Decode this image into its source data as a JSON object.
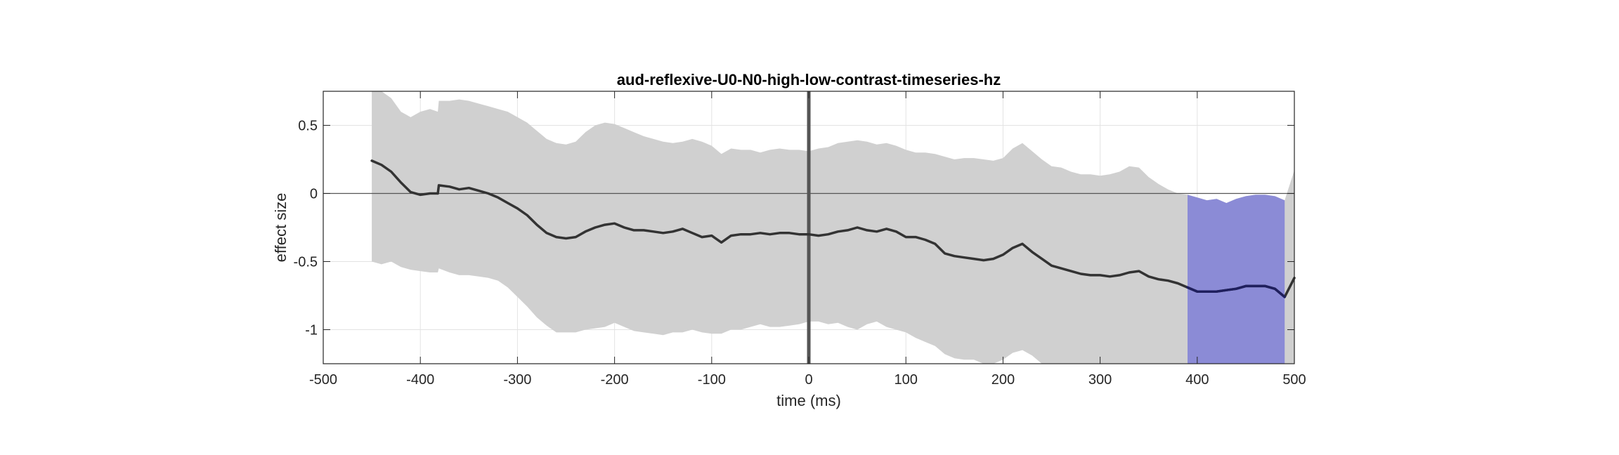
{
  "chart_data": {
    "type": "line",
    "title": "aud-reflexive-U0-N0-high-low-contrast-timeseries-hz",
    "xlabel": "time (ms)",
    "ylabel": "effect size",
    "xlim": [
      -500,
      500
    ],
    "ylim": [
      -1.25,
      0.75
    ],
    "xticks": [
      -500,
      -400,
      -300,
      -200,
      -100,
      0,
      100,
      200,
      300,
      400,
      500
    ],
    "xtick_labels": [
      "-500",
      "-400",
      "-300",
      "-200",
      "-100",
      "0",
      "100",
      "200",
      "300",
      "400",
      "500"
    ],
    "yticks": [
      -1,
      -0.5,
      0,
      0.5
    ],
    "ytick_labels": [
      "-1",
      "-0.5",
      "0",
      "0.5"
    ],
    "grid": true,
    "zero_line": 0,
    "event_line_x": 0,
    "significant_window": [
      390,
      490
    ],
    "colors": {
      "line": "#333333",
      "line_significant": "#1f1f5e",
      "band": "#d0d0d0",
      "band_significant": "#8b8bd6",
      "event_line": "#555555",
      "grid": "#e3e3e3"
    },
    "series": [
      {
        "x": [
          -450,
          -440,
          -430,
          -420,
          -410,
          -400,
          -390,
          -382,
          -381,
          -370,
          -360,
          -350,
          -340,
          -330,
          -320,
          -310,
          -300,
          -290,
          -280,
          -270,
          -260,
          -250,
          -240,
          -230,
          -220,
          -210,
          -200,
          -190,
          -180,
          -170,
          -160,
          -150,
          -140,
          -130,
          -120,
          -110,
          -100,
          -90,
          -80,
          -70,
          -60,
          -50,
          -40,
          -30,
          -20,
          -10,
          0,
          10,
          20,
          30,
          40,
          50,
          60,
          70,
          80,
          90,
          100,
          110,
          120,
          130,
          140,
          150,
          160,
          170,
          180,
          190,
          200,
          210,
          220,
          230,
          240,
          250,
          260,
          270,
          280,
          290,
          300,
          310,
          320,
          330,
          340,
          350,
          360,
          370,
          380,
          390,
          400,
          410,
          420,
          430,
          440,
          450,
          460,
          470,
          480,
          490,
          500
        ],
        "y": [
          0.24,
          0.21,
          0.16,
          0.08,
          0.01,
          -0.01,
          0.0,
          0.0,
          0.06,
          0.05,
          0.03,
          0.04,
          0.02,
          0.0,
          -0.03,
          -0.07,
          -0.11,
          -0.16,
          -0.23,
          -0.29,
          -0.32,
          -0.33,
          -0.32,
          -0.28,
          -0.25,
          -0.23,
          -0.22,
          -0.25,
          -0.27,
          -0.27,
          -0.28,
          -0.29,
          -0.28,
          -0.26,
          -0.29,
          -0.32,
          -0.31,
          -0.36,
          -0.31,
          -0.3,
          -0.3,
          -0.29,
          -0.3,
          -0.29,
          -0.29,
          -0.3,
          -0.3,
          -0.31,
          -0.3,
          -0.28,
          -0.27,
          -0.25,
          -0.27,
          -0.28,
          -0.26,
          -0.28,
          -0.32,
          -0.32,
          -0.34,
          -0.37,
          -0.44,
          -0.46,
          -0.47,
          -0.48,
          -0.49,
          -0.48,
          -0.45,
          -0.4,
          -0.37,
          -0.43,
          -0.48,
          -0.53,
          -0.55,
          -0.57,
          -0.59,
          -0.6,
          -0.6,
          -0.61,
          -0.6,
          -0.58,
          -0.57,
          -0.61,
          -0.63,
          -0.64,
          -0.66,
          -0.69,
          -0.72,
          -0.72,
          -0.72,
          -0.71,
          -0.7,
          -0.68,
          -0.68,
          -0.68,
          -0.7,
          -0.76,
          -0.62
        ],
        "ci_upper": [
          0.75,
          0.75,
          0.7,
          0.6,
          0.56,
          0.6,
          0.62,
          0.6,
          0.68,
          0.68,
          0.69,
          0.68,
          0.66,
          0.64,
          0.62,
          0.6,
          0.56,
          0.52,
          0.46,
          0.4,
          0.37,
          0.36,
          0.38,
          0.45,
          0.5,
          0.52,
          0.51,
          0.48,
          0.45,
          0.42,
          0.4,
          0.38,
          0.37,
          0.38,
          0.4,
          0.38,
          0.35,
          0.29,
          0.33,
          0.32,
          0.32,
          0.3,
          0.32,
          0.33,
          0.32,
          0.32,
          0.31,
          0.33,
          0.34,
          0.37,
          0.38,
          0.39,
          0.38,
          0.36,
          0.37,
          0.35,
          0.32,
          0.3,
          0.3,
          0.29,
          0.27,
          0.25,
          0.26,
          0.26,
          0.25,
          0.24,
          0.26,
          0.33,
          0.37,
          0.31,
          0.25,
          0.2,
          0.19,
          0.16,
          0.14,
          0.14,
          0.13,
          0.14,
          0.16,
          0.2,
          0.19,
          0.12,
          0.07,
          0.03,
          0.0,
          -0.01,
          -0.03,
          -0.05,
          -0.04,
          -0.07,
          -0.04,
          -0.02,
          -0.01,
          -0.01,
          -0.02,
          -0.05,
          0.17
        ],
        "ci_lower": [
          -0.5,
          -0.52,
          -0.5,
          -0.54,
          -0.56,
          -0.57,
          -0.58,
          -0.58,
          -0.55,
          -0.58,
          -0.6,
          -0.6,
          -0.61,
          -0.62,
          -0.64,
          -0.69,
          -0.76,
          -0.83,
          -0.91,
          -0.97,
          -1.02,
          -1.02,
          -1.02,
          -1.0,
          -0.99,
          -0.98,
          -0.95,
          -0.98,
          -1.01,
          -1.02,
          -1.03,
          -1.04,
          -1.02,
          -1.02,
          -1.0,
          -1.02,
          -1.03,
          -1.03,
          -1.0,
          -1.0,
          -0.98,
          -0.96,
          -0.98,
          -0.98,
          -0.97,
          -0.96,
          -0.94,
          -0.94,
          -0.96,
          -0.95,
          -0.98,
          -1.0,
          -0.96,
          -0.94,
          -0.98,
          -1.0,
          -1.02,
          -1.06,
          -1.09,
          -1.12,
          -1.18,
          -1.21,
          -1.22,
          -1.22,
          -1.25,
          -1.25,
          -1.22,
          -1.17,
          -1.15,
          -1.19,
          -1.25,
          -1.25,
          -1.25,
          -1.25,
          -1.25,
          -1.25,
          -1.25,
          -1.25,
          -1.25,
          -1.25,
          -1.25,
          -1.25,
          -1.25,
          -1.25,
          -1.25,
          -1.25,
          -1.25,
          -1.25,
          -1.25,
          -1.25,
          -1.25,
          -1.25,
          -1.25,
          -1.25,
          -1.25,
          -1.25,
          -1.25
        ]
      }
    ]
  }
}
